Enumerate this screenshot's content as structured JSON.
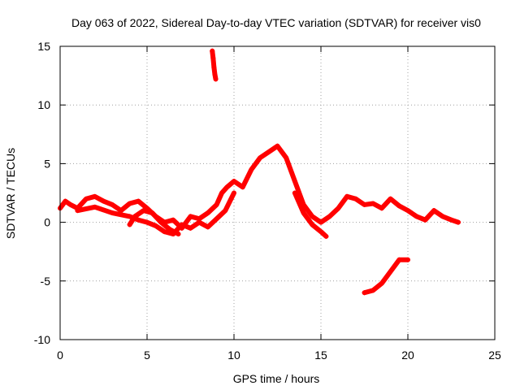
{
  "chart_data": {
    "type": "scatter",
    "title": "Day 063 of 2022, Sidereal Day-to-day VTEC variation (SDTVAR) for receiver vis0",
    "xlabel": "GPS time / hours",
    "ylabel": "SDTVAR / TECUs",
    "xlim": [
      0,
      25
    ],
    "ylim": [
      -10,
      15
    ],
    "xticks": [
      0,
      5,
      10,
      15,
      20,
      25
    ],
    "yticks": [
      -10,
      -5,
      0,
      5,
      10,
      15
    ],
    "grid": true,
    "marker": "+",
    "color": "#ff0000",
    "series": [
      {
        "name": "main-trace",
        "x": [
          0,
          0.3,
          0.6,
          1.0,
          1.5,
          2.0,
          2.5,
          3.0,
          3.5,
          4.0,
          4.5,
          5.0,
          5.5,
          6.0,
          6.5,
          7.0,
          7.5,
          8.0,
          8.5,
          9.0,
          9.3,
          9.6,
          10.0,
          10.5,
          11.0,
          11.5,
          12.0,
          12.5,
          13.0,
          13.5,
          14.0,
          14.5,
          15.0,
          15.5,
          16.0,
          16.5,
          17.0,
          17.5,
          18.0,
          18.5,
          19.0,
          19.5,
          20.0,
          20.5,
          21.0,
          21.5,
          22.0,
          22.5,
          22.9
        ],
        "y": [
          1.2,
          1.8,
          1.5,
          1.2,
          2.0,
          2.2,
          1.8,
          1.5,
          1.0,
          1.6,
          1.8,
          1.2,
          0.5,
          0.0,
          0.2,
          -0.5,
          0.5,
          0.3,
          0.8,
          1.5,
          2.5,
          3.0,
          3.5,
          3.0,
          4.5,
          5.5,
          6.0,
          6.5,
          5.5,
          3.5,
          1.5,
          0.5,
          0.0,
          0.5,
          1.2,
          2.2,
          2.0,
          1.5,
          1.6,
          1.2,
          2.0,
          1.4,
          1.0,
          0.5,
          0.2,
          1.0,
          0.5,
          0.2,
          0.0
        ]
      },
      {
        "name": "secondary-trace",
        "x": [
          1.0,
          2.0,
          3.0,
          4.0,
          4.5,
          5.0,
          5.5,
          6.0,
          6.5,
          7.0,
          7.5,
          8.0,
          8.5,
          9.0,
          9.5,
          10.0
        ],
        "y": [
          1.0,
          1.3,
          0.8,
          0.5,
          0.2,
          0.0,
          -0.3,
          -0.8,
          -1.0,
          -0.2,
          -0.5,
          0.0,
          -0.4,
          0.3,
          1.0,
          2.5
        ]
      },
      {
        "name": "lower-left-arc",
        "x": [
          4.0,
          4.3,
          4.8,
          5.3,
          5.8,
          6.3,
          6.8
        ],
        "y": [
          -0.2,
          0.5,
          1.0,
          0.8,
          0.0,
          -0.6,
          -1.0
        ]
      },
      {
        "name": "tail-trace",
        "x": [
          13.5,
          14.0,
          14.5,
          15.0,
          15.3
        ],
        "y": [
          2.5,
          0.8,
          -0.2,
          -0.8,
          -1.2
        ]
      },
      {
        "name": "upper-spike",
        "x": [
          8.75,
          8.8,
          8.85,
          8.9,
          8.95
        ],
        "y": [
          14.6,
          14.0,
          13.2,
          12.6,
          12.2
        ]
      },
      {
        "name": "lower-negative",
        "x": [
          17.5,
          18.0,
          18.5,
          19.0,
          19.5,
          20.0
        ],
        "y": [
          -6.0,
          -5.8,
          -5.2,
          -4.2,
          -3.2,
          -3.2
        ]
      }
    ]
  }
}
